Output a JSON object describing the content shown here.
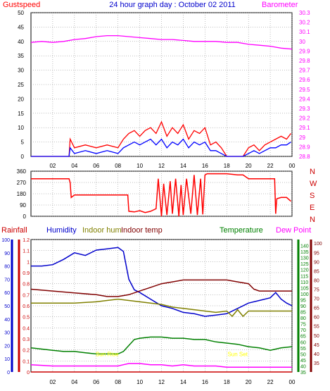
{
  "page_title": "24 hour graph day : October 02 2011",
  "colors": {
    "gust": "#ff0000",
    "wind_avg": "#0000ff",
    "baro": "#ff00ff",
    "wind_dir": "#ff0000",
    "rain": "#cc0000",
    "humidity": "#0000cc",
    "indoor_hum": "#808000",
    "indoor_temp": "#800000",
    "temperature": "#008000",
    "dew_point": "#ff00ff",
    "sun_rise": "#ffff00",
    "grid": "#808080"
  },
  "chart_data": [
    {
      "type": "line",
      "title": "24 hour graph day : October 02 2011",
      "x_tick_labels": [
        "02",
        "04",
        "06",
        "08",
        "10",
        "12",
        "14",
        "16",
        "18",
        "20",
        "22",
        "00"
      ],
      "x_range_hours": [
        0,
        24
      ],
      "grid": true,
      "y_left": {
        "label": "Gustspeed",
        "ticks": [
          0,
          5,
          10,
          15,
          20,
          25,
          30,
          35,
          40,
          45,
          50
        ],
        "range": [
          0,
          50
        ]
      },
      "y_right": {
        "label": "Barometer",
        "ticks": [
          28.8,
          28.9,
          29,
          29.1,
          29.2,
          29.3,
          29.4,
          29.5,
          29.6,
          29.7,
          29.8,
          29.9,
          30,
          30.1,
          30.2,
          30.3
        ],
        "range": [
          28.8,
          30.3
        ],
        "tick_labels": [
          "28.8",
          "28.9",
          "29",
          "29.1",
          "29.2",
          "29.3",
          "29.4",
          "29.5",
          "29.6",
          "29.7",
          "29.8",
          "29.9",
          "30",
          "30.1",
          "30.2",
          "30.3"
        ]
      },
      "series": [
        {
          "name": "Gustspeed",
          "axis": "left",
          "color_key": "gust",
          "x": [
            0,
            3.5,
            3.6,
            4,
            5,
            6,
            7,
            8,
            8.5,
            9,
            9.5,
            10,
            10.5,
            11,
            11.5,
            12,
            12.5,
            13,
            13.5,
            14,
            14.5,
            15,
            15.5,
            16,
            16.5,
            17,
            17.5,
            18,
            19,
            19.5,
            20,
            20.5,
            21,
            21.5,
            22,
            22.5,
            23,
            23.5,
            23.9
          ],
          "y": [
            0,
            0,
            6,
            3,
            4,
            3,
            4,
            3,
            6,
            8,
            9,
            7,
            9,
            10,
            8,
            12,
            7,
            10,
            8,
            11,
            6,
            9,
            8,
            10,
            4,
            5,
            3,
            0,
            0,
            0,
            3,
            4,
            2,
            4,
            5,
            6,
            7,
            6,
            8
          ]
        },
        {
          "name": "Wind speed",
          "axis": "left",
          "color_key": "wind_avg",
          "x": [
            0,
            3.5,
            3.6,
            4,
            5,
            6,
            7,
            8,
            8.5,
            9,
            9.5,
            10,
            10.5,
            11,
            11.5,
            12,
            12.5,
            13,
            13.5,
            14,
            14.5,
            15,
            15.5,
            16,
            16.5,
            17,
            17.5,
            18,
            19,
            19.5,
            20,
            20.5,
            21,
            21.5,
            22,
            22.5,
            23,
            23.5,
            23.9
          ],
          "y": [
            0,
            0,
            3,
            1,
            2,
            1,
            2,
            1,
            3,
            4,
            5,
            4,
            5,
            6,
            4,
            6,
            3,
            5,
            4,
            6,
            3,
            5,
            4,
            5,
            2,
            2,
            1,
            0,
            0,
            0,
            1,
            2,
            1,
            2,
            3,
            3,
            4,
            4,
            5
          ]
        },
        {
          "name": "Barometer",
          "axis": "right",
          "color_key": "baro",
          "x": [
            0,
            1,
            2,
            3,
            4,
            5,
            6,
            7,
            8,
            9,
            10,
            11,
            12,
            13,
            14,
            15,
            16,
            17,
            18,
            19,
            20,
            21,
            22,
            23,
            24
          ],
          "y": [
            29.99,
            30.0,
            29.99,
            30.0,
            30.02,
            30.03,
            30.05,
            30.06,
            30.06,
            30.05,
            30.04,
            30.03,
            30.02,
            30.02,
            30.01,
            30.0,
            30.0,
            30.0,
            29.99,
            29.99,
            29.97,
            29.96,
            29.95,
            29.93,
            29.92
          ]
        }
      ]
    },
    {
      "type": "line",
      "y_left": {
        "ticks": [
          0,
          90,
          180,
          270,
          360
        ],
        "range": [
          0,
          360
        ]
      },
      "y_right_labels": [
        "N",
        "W",
        "S",
        "E",
        "N"
      ],
      "x_range_hours": [
        0,
        24
      ],
      "grid": true,
      "series": [
        {
          "name": "Wind direction",
          "axis": "left",
          "color_key": "wind_dir",
          "x": [
            0,
            3.5,
            3.6,
            3.7,
            4,
            5,
            6,
            7,
            8,
            8.9,
            9,
            9.5,
            10,
            10.5,
            11,
            11.5,
            11.7,
            12,
            12.2,
            12.5,
            12.8,
            13,
            13.3,
            13.6,
            13.8,
            14,
            14.3,
            14.7,
            15,
            15.3,
            15.6,
            15.8,
            16,
            16.2,
            16.5,
            17,
            18,
            19,
            19.5,
            20,
            20.5,
            21,
            21.5,
            22,
            22.4,
            22.5,
            22.6,
            23,
            23.5,
            23.9
          ],
          "y": [
            300,
            300,
            270,
            150,
            170,
            170,
            170,
            170,
            170,
            170,
            40,
            35,
            45,
            30,
            40,
            60,
            300,
            0,
            260,
            10,
            280,
            20,
            300,
            0,
            250,
            10,
            300,
            20,
            330,
            10,
            300,
            15,
            330,
            340,
            340,
            340,
            340,
            330,
            330,
            300,
            300,
            300,
            300,
            300,
            300,
            20,
            140,
            150,
            150,
            120
          ]
        }
      ]
    },
    {
      "type": "line",
      "legend": [
        "Rainfall",
        "Humidity",
        "Indoor hum",
        "Indoor temp",
        "Temperature",
        "Dew Point"
      ],
      "x_tick_labels": [
        "02",
        "04",
        "06",
        "08",
        "10",
        "12",
        "14",
        "16",
        "18",
        "20",
        "22",
        "00"
      ],
      "x_range_hours": [
        0,
        24
      ],
      "grid": true,
      "annotations": [
        {
          "text": "Sun Rise",
          "x_hour": 7,
          "y_hum": 12
        },
        {
          "text": "Sun Set",
          "x_hour": 19,
          "y_hum": 12
        }
      ],
      "y_axis_rain": {
        "ticks": [
          0,
          0.1,
          0.2,
          0.3,
          0.4,
          0.5,
          0.6,
          0.7,
          0.8,
          0.9,
          1,
          1.1,
          1.2
        ],
        "range": [
          0,
          1.2
        ],
        "tick_labels": [
          "0",
          "0.1",
          "0.2",
          "0.3",
          "0.4",
          "0.5",
          "0.6",
          "0.7",
          "0.8",
          "0.9",
          "1",
          "1.1",
          "1.2"
        ]
      },
      "y_axis_hum": {
        "ticks": [
          0,
          10,
          20,
          30,
          40,
          50,
          60,
          70,
          80,
          90,
          100
        ],
        "range": [
          0,
          100
        ]
      },
      "y_axis_temp_f": {
        "ticks": [
          35,
          40,
          45,
          50,
          55,
          60,
          65,
          70,
          75,
          80,
          85,
          90,
          95,
          100,
          105,
          110,
          115,
          120,
          125,
          130,
          135,
          140
        ],
        "range": [
          35,
          145
        ]
      },
      "y_axis_temp_c": {
        "ticks": [
          35,
          40,
          45,
          50,
          55,
          60,
          65,
          70,
          75,
          80,
          85,
          90,
          95,
          100
        ],
        "range": [
          30,
          102
        ]
      },
      "series": [
        {
          "name": "Rainfall",
          "axis": "rain",
          "color_key": "rain",
          "x": [
            0,
            24
          ],
          "y": [
            0,
            0
          ]
        },
        {
          "name": "Humidity",
          "axis": "hum",
          "color_key": "humidity",
          "x": [
            0,
            1,
            2,
            3,
            4,
            5,
            6,
            7,
            8,
            8.5,
            9,
            9.5,
            10,
            11,
            12,
            13,
            14,
            15,
            16,
            17,
            18,
            19,
            20,
            21,
            22,
            22.5,
            23,
            23.5,
            24
          ],
          "y": [
            80,
            80,
            81,
            85,
            90,
            88,
            92,
            93,
            94,
            91,
            70,
            62,
            60,
            55,
            50,
            48,
            45,
            44,
            42,
            43,
            44,
            48,
            52,
            54,
            56,
            60,
            55,
            52,
            50
          ]
        },
        {
          "name": "Indoor hum",
          "axis": "hum",
          "color_key": "indoor_hum",
          "x": [
            0,
            2,
            4,
            6,
            7,
            8,
            9,
            10,
            11,
            12,
            13,
            14,
            15,
            16,
            17,
            18,
            18.5,
            19,
            19.5,
            20,
            21,
            22,
            23,
            24
          ],
          "y": [
            52,
            52,
            52,
            53,
            54,
            55,
            54,
            53,
            52,
            51,
            49,
            48,
            47,
            46,
            45,
            46,
            42,
            47,
            42,
            46,
            46,
            46,
            46,
            46
          ]
        },
        {
          "name": "Indoor temp",
          "axis": "temp_c",
          "color_key": "indoor_temp",
          "x": [
            0,
            2,
            4,
            6,
            7,
            8,
            9,
            10,
            11,
            12,
            13,
            14,
            15,
            16,
            17,
            18,
            19,
            20,
            20.5,
            21,
            22,
            23,
            24
          ],
          "y": [
            75,
            74,
            73,
            72,
            71,
            71,
            72,
            74,
            76,
            78,
            79,
            80,
            80,
            80,
            80,
            80,
            79,
            78,
            75,
            74,
            74,
            74,
            74
          ]
        },
        {
          "name": "Temperature",
          "axis": "temp_f",
          "color_key": "temperature",
          "x": [
            0,
            1,
            2,
            3,
            4,
            5,
            6,
            7,
            8,
            8.5,
            9,
            9.5,
            10,
            11,
            12,
            13,
            14,
            15,
            16,
            17,
            18,
            19,
            20,
            21,
            22,
            23,
            24
          ],
          "y": [
            55,
            54,
            53,
            52,
            52,
            51,
            50,
            50,
            50,
            52,
            57,
            62,
            63,
            64,
            64,
            63,
            63,
            62,
            62,
            60,
            59,
            58,
            56,
            55,
            53,
            55,
            56
          ]
        },
        {
          "name": "Dew Point",
          "axis": "temp_f",
          "color_key": "dew_point",
          "x": [
            0,
            2,
            4,
            6,
            7,
            8,
            8.5,
            9,
            10,
            11,
            12,
            13,
            14,
            15,
            16,
            17,
            18,
            19,
            20,
            21,
            22,
            23,
            24
          ],
          "y": [
            41,
            40,
            40,
            40,
            40,
            40,
            41,
            42,
            42,
            41,
            41,
            40,
            41,
            40,
            40,
            40,
            39,
            39,
            39,
            39,
            39,
            39,
            39
          ]
        }
      ]
    }
  ]
}
